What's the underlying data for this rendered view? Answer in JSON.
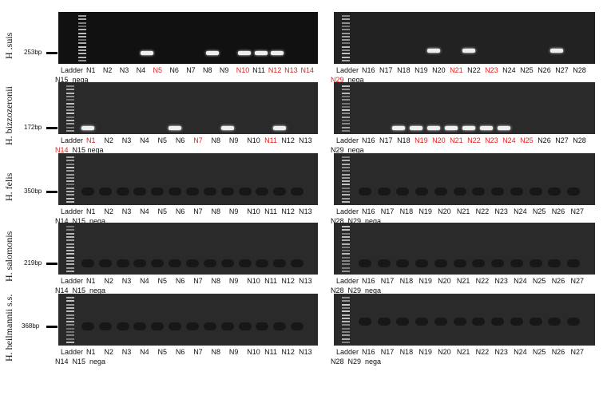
{
  "rows": [
    {
      "species": "H .suis",
      "bp": "253bp",
      "dark": true,
      "left": {
        "line1": [
          [
            "Ladder",
            0
          ],
          [
            "N1",
            0
          ],
          [
            "N2",
            0
          ],
          [
            "N3",
            0
          ],
          [
            "N4",
            0
          ],
          [
            "N5",
            1
          ],
          [
            "N6",
            0
          ],
          [
            "N7",
            0
          ],
          [
            "N8",
            0
          ],
          [
            "N9",
            0
          ],
          [
            "N10",
            1
          ],
          [
            "N11",
            0
          ],
          [
            "N12",
            1
          ],
          [
            "N13",
            1
          ],
          [
            "N14",
            1
          ]
        ],
        "line2": [
          [
            "N15",
            0
          ],
          [
            "nega",
            0
          ]
        ],
        "bands": [
          4,
          8,
          10,
          11,
          12
        ],
        "band_level": 0.75
      },
      "right": {
        "line1": [
          [
            "Ladder",
            0
          ],
          [
            "N16",
            0
          ],
          [
            "N17",
            0
          ],
          [
            "N18",
            0
          ],
          [
            "N19",
            0
          ],
          [
            "N20",
            0
          ],
          [
            "N21",
            1
          ],
          [
            "N22",
            0
          ],
          [
            "N23",
            1
          ],
          [
            "N24",
            0
          ],
          [
            "N25",
            0
          ],
          [
            "N26",
            0
          ],
          [
            "N27",
            0
          ],
          [
            "N28",
            0
          ]
        ],
        "line2": [
          [
            "N29",
            1
          ],
          [
            "nega",
            0
          ]
        ],
        "bands": [
          5,
          7,
          12
        ],
        "band_level": 0.7
      }
    },
    {
      "species": "H. bizzozeronii",
      "bp": "172bp",
      "dark": false,
      "left": {
        "line1": [
          [
            "Ladder",
            0
          ],
          [
            "N1",
            1
          ],
          [
            "N2",
            0
          ],
          [
            "N3",
            0
          ],
          [
            "N4",
            0
          ],
          [
            "N5",
            0
          ],
          [
            "N6",
            0
          ],
          [
            "N7",
            1
          ],
          [
            "N8",
            0
          ],
          [
            "N9",
            0
          ],
          [
            "N10",
            0
          ],
          [
            "N11",
            1
          ],
          [
            "N12",
            0
          ],
          [
            "N13",
            0
          ]
        ],
        "line2": [
          [
            "N14",
            1
          ],
          [
            "N15 nega",
            0
          ]
        ],
        "bands": [
          1,
          6,
          9,
          12
        ],
        "band_level": 0.85
      },
      "right": {
        "line1": [
          [
            "Ladder",
            0
          ],
          [
            "N16",
            0
          ],
          [
            "N17",
            0
          ],
          [
            "N18",
            0
          ],
          [
            "N19",
            1
          ],
          [
            "N20",
            1
          ],
          [
            "N21",
            1
          ],
          [
            "N22",
            1
          ],
          [
            "N23",
            1
          ],
          [
            "N24",
            1
          ],
          [
            "N25",
            1
          ],
          [
            "N26",
            0
          ],
          [
            "N27",
            0
          ],
          [
            "N28",
            0
          ]
        ],
        "line2": [
          [
            "N29",
            0
          ],
          [
            "nega",
            0
          ]
        ],
        "bands": [
          3,
          4,
          5,
          6,
          7,
          8,
          9
        ],
        "band_level": 0.85
      }
    },
    {
      "species": "H. felis",
      "bp": "350bp",
      "dark": false,
      "left": {
        "line1": [
          [
            "Ladder",
            0
          ],
          [
            "N1",
            0
          ],
          [
            "N2",
            0
          ],
          [
            "N3",
            0
          ],
          [
            "N4",
            0
          ],
          [
            "N5",
            0
          ],
          [
            "N6",
            0
          ],
          [
            "N7",
            0
          ],
          [
            "N8",
            0
          ],
          [
            "N9",
            0
          ],
          [
            "N10",
            0
          ],
          [
            "N11",
            0
          ],
          [
            "N12",
            0
          ],
          [
            "N13",
            0
          ]
        ],
        "line2": [
          [
            "N14",
            0
          ],
          [
            "N15",
            0
          ],
          [
            "nega",
            0
          ]
        ],
        "bands": [],
        "band_level": 0.7
      },
      "right": {
        "line1": [
          [
            "Ladder",
            0
          ],
          [
            "N16",
            0
          ],
          [
            "N17",
            0
          ],
          [
            "N18",
            0
          ],
          [
            "N19",
            0
          ],
          [
            "N20",
            0
          ],
          [
            "N21",
            0
          ],
          [
            "N22",
            0
          ],
          [
            "N23",
            0
          ],
          [
            "N24",
            0
          ],
          [
            "N25",
            0
          ],
          [
            "N26",
            0
          ],
          [
            "N27",
            0
          ]
        ],
        "line2": [
          [
            "N28",
            0
          ],
          [
            "N29",
            0
          ],
          [
            "nega",
            0
          ]
        ],
        "bands": [],
        "band_level": 0.7
      }
    },
    {
      "species": "H. salomonis",
      "bp": "219bp",
      "dark": false,
      "left": {
        "line1": [
          [
            "Ladder",
            0
          ],
          [
            "N1",
            0
          ],
          [
            "N2",
            0
          ],
          [
            "N3",
            0
          ],
          [
            "N4",
            0
          ],
          [
            "N5",
            0
          ],
          [
            "N6",
            0
          ],
          [
            "N7",
            0
          ],
          [
            "N8",
            0
          ],
          [
            "N9",
            0
          ],
          [
            "N10",
            0
          ],
          [
            "N11",
            0
          ],
          [
            "N12",
            0
          ],
          [
            "N13",
            0
          ]
        ],
        "line2": [
          [
            "N14",
            0
          ],
          [
            "N15",
            0
          ],
          [
            "nega",
            0
          ]
        ],
        "bands": [],
        "band_level": 0.75
      },
      "right": {
        "line1": [
          [
            "Ladder",
            0
          ],
          [
            "N16",
            0
          ],
          [
            "N17",
            0
          ],
          [
            "N18",
            0
          ],
          [
            "N19",
            0
          ],
          [
            "N20",
            0
          ],
          [
            "N21",
            0
          ],
          [
            "N22",
            0
          ],
          [
            "N23",
            0
          ],
          [
            "N24",
            0
          ],
          [
            "N25",
            0
          ],
          [
            "N26",
            0
          ],
          [
            "N27",
            0
          ]
        ],
        "line2": [
          [
            "N28",
            0
          ],
          [
            "N29",
            0
          ],
          [
            "nega",
            0
          ]
        ],
        "bands": [],
        "band_level": 0.75
      }
    },
    {
      "species": "H. heilmannii s.s.",
      "bp": "368bp",
      "dark": false,
      "left": {
        "line1": [
          [
            "Ladder",
            0
          ],
          [
            "N1",
            0
          ],
          [
            "N2",
            0
          ],
          [
            "N3",
            0
          ],
          [
            "N4",
            0
          ],
          [
            "N5",
            0
          ],
          [
            "N6",
            0
          ],
          [
            "N7",
            0
          ],
          [
            "N8",
            0
          ],
          [
            "N9",
            0
          ],
          [
            "N10",
            0
          ],
          [
            "N11",
            0
          ],
          [
            "N12",
            0
          ],
          [
            "N13",
            0
          ]
        ],
        "line2": [
          [
            "N14",
            0
          ],
          [
            "N15",
            0
          ],
          [
            "nega",
            0
          ]
        ],
        "bands": [],
        "band_level": 0.6
      },
      "right": {
        "line1": [
          [
            "Ladder",
            0
          ],
          [
            "N16",
            0
          ],
          [
            "N17",
            0
          ],
          [
            "N18",
            0
          ],
          [
            "N19",
            0
          ],
          [
            "N20",
            0
          ],
          [
            "N21",
            0
          ],
          [
            "N22",
            0
          ],
          [
            "N23",
            0
          ],
          [
            "N24",
            0
          ],
          [
            "N25",
            0
          ],
          [
            "N26",
            0
          ],
          [
            "N27",
            0
          ]
        ],
        "line2": [
          [
            "N28",
            0
          ],
          [
            "N29",
            0
          ],
          [
            "nega",
            0
          ]
        ],
        "bands": [],
        "band_level": 0.5
      }
    }
  ],
  "colors": {
    "positive_label": "#e02020",
    "label": "#111111"
  }
}
